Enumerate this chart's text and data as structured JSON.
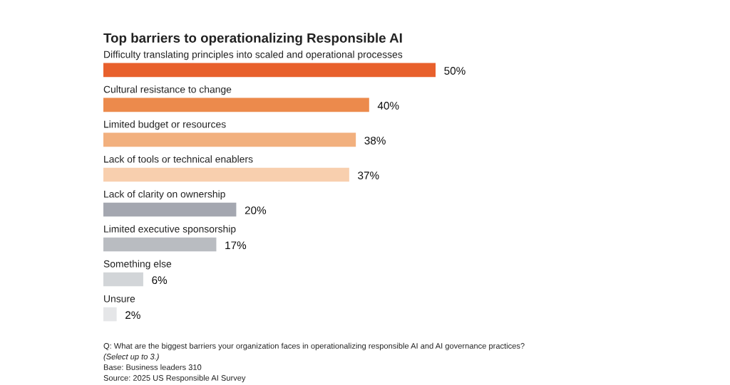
{
  "chart_data": {
    "type": "bar",
    "orientation": "horizontal",
    "title": "Top barriers to operationalizing Responsible AI",
    "categories": [
      "Difficulty translating principles into scaled and operational processes",
      "Cultural resistance to change",
      "Limited budget or resources",
      "Lack of tools or technical enablers",
      "Lack of clarity on ownership",
      "Limited executive sponsorship",
      "Something else",
      "Unsure"
    ],
    "values": [
      50,
      40,
      38,
      37,
      20,
      17,
      6,
      2
    ],
    "value_labels": [
      "50%",
      "40%",
      "38%",
      "37%",
      "20%",
      "17%",
      "6%",
      "2%"
    ],
    "colors": [
      "#e8602c",
      "#ec8a4c",
      "#f2b07e",
      "#f8cfae",
      "#a4a7b0",
      "#b9bcc1",
      "#d2d5d8",
      "#e5e6e8"
    ],
    "annotations": [
      "Q: What are the biggest barriers your organization faces in operationalizing responsible AI and AI governance practices?",
      "(Select up to 3.)",
      "Base: Business leaders 310",
      "Source: 2025 US Responsible AI Survey"
    ]
  }
}
